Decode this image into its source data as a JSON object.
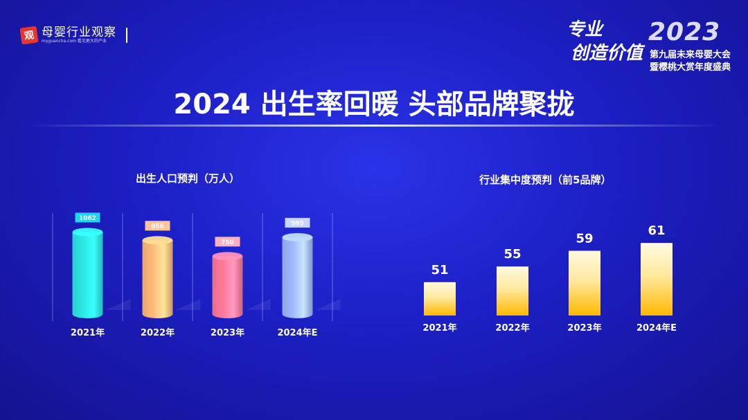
{
  "logo": {
    "badge": "观",
    "name": "母婴行业观察",
    "sub": "myguancha.com 看见更大的产业"
  },
  "conference": {
    "slogan1": "专业",
    "slogan2": "创造价值",
    "year": "2023",
    "line1": "第九届未来母婴大会",
    "line2": "暨樱桃大赏年度盛典"
  },
  "title": "2024 出生率回暖 头部品牌聚拢",
  "colors": {
    "cyl": [
      "#2ee6e6",
      "#ffb97a",
      "#ff7a9a",
      "#9fb8ff"
    ],
    "label_bg": [
      "#22d3ee",
      "#ffc49a",
      "#ffb0c0",
      "#c7d6ff"
    ],
    "bar_top": "#fff9e0",
    "bar_bottom": "#ffb800"
  },
  "chart_data": [
    {
      "type": "bar",
      "title": "出生人口预判（万人）",
      "categories": [
        "2021年",
        "2022年",
        "2023年",
        "2024年E"
      ],
      "values": [
        1062,
        956,
        750,
        995
      ],
      "ylim": [
        0,
        1200
      ]
    },
    {
      "type": "bar",
      "title": "行业集中度预判（前5品牌）",
      "categories": [
        "2021年",
        "2022年",
        "2023年",
        "2024年E"
      ],
      "values": [
        51,
        55,
        59,
        61
      ]
    }
  ]
}
